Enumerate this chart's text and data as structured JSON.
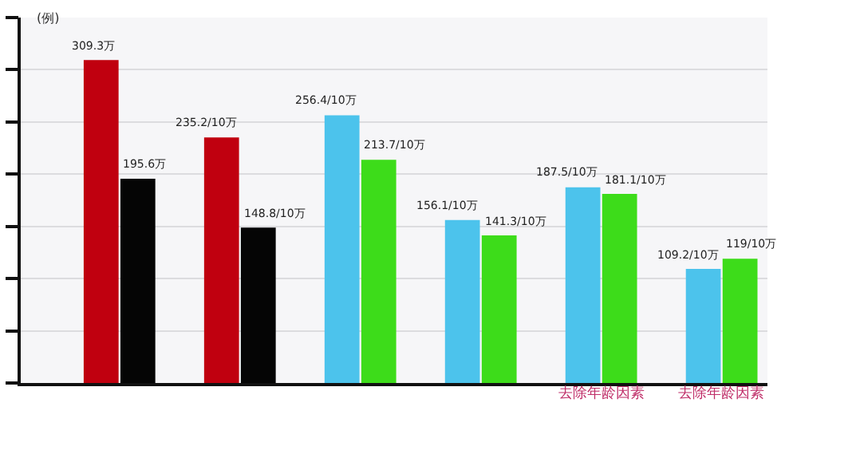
{
  "chart_data": {
    "type": "bar",
    "ylabel": "(例)",
    "categories": [
      null,
      null,
      null,
      null,
      null,
      null
    ],
    "series": [
      {
        "colors": [
          "#c0000f",
          "#c0000f",
          "#4cc3ec",
          "#4cc3ec",
          "#4cc3ec",
          "#4cc3ec"
        ],
        "values": [
          309.3,
          235.2,
          256.4,
          156.1,
          187.5,
          109.2
        ],
        "value_labels": [
          "309.3万",
          "235.2/10万",
          "256.4/10万",
          "156.1/10万",
          "187.5/10万",
          "109.2/10万"
        ]
      },
      {
        "colors": [
          "#050505",
          "#050505",
          "#3ddc1a",
          "#3ddc1a",
          "#3ddc1a",
          "#3ddc1a"
        ],
        "values": [
          195.6,
          148.8,
          213.7,
          141.3,
          181.1,
          119
        ],
        "value_labels": [
          "195.6万",
          "148.8/10万",
          "213.7/10万",
          "141.3/10万",
          "181.1/10万",
          "119/10万"
        ]
      }
    ],
    "ylim": [
      0,
      350
    ],
    "yticks": [
      {
        "value": 0,
        "label": null
      },
      {
        "value": 50,
        "label": null
      },
      {
        "value": 100,
        "label": null
      },
      {
        "value": 150,
        "label": null
      },
      {
        "value": 200,
        "label": null
      },
      {
        "value": 250,
        "label": null
      },
      {
        "value": 300,
        "label": null
      },
      {
        "value": 350,
        "label": null
      }
    ],
    "grid": "y",
    "annotations": [
      "去除年龄因素",
      "去除年龄因素"
    ]
  }
}
